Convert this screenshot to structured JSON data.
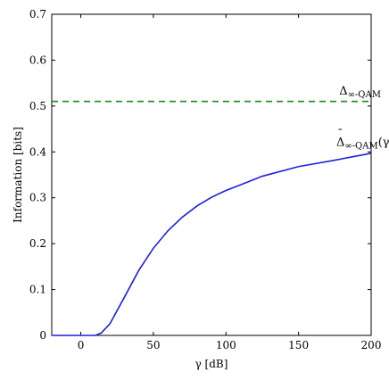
{
  "chart_data": {
    "type": "line",
    "xlabel": "γ [dB]",
    "ylabel": "Information [bits]",
    "xlim": [
      -20,
      200
    ],
    "ylim": [
      0,
      0.7
    ],
    "x_ticks": [
      0,
      50,
      100,
      150,
      200
    ],
    "y_ticks": [
      0,
      0.1,
      0.2,
      0.3,
      0.4,
      0.5,
      0.6,
      0.7
    ],
    "x_tick_labels": [
      "0",
      "50",
      "100",
      "150",
      "200"
    ],
    "y_tick_labels": [
      "0",
      "0.1",
      "0.2",
      "0.3",
      "0.4",
      "0.5",
      "0.6",
      "0.7"
    ],
    "grid": false,
    "series": [
      {
        "color": "#1f1fdb",
        "style": "solid",
        "x": [
          -20,
          0,
          10,
          14,
          20,
          30,
          40,
          50,
          60,
          70,
          80,
          90,
          100,
          110,
          125,
          150,
          175,
          200
        ],
        "y": [
          0,
          0,
          0,
          0.005,
          0.025,
          0.083,
          0.142,
          0.19,
          0.228,
          0.258,
          0.282,
          0.301,
          0.316,
          0.328,
          0.347,
          0.368,
          0.382,
          0.397
        ]
      },
      {
        "color": "#1a8a1a",
        "style": "dashed",
        "x": [
          -20,
          200
        ],
        "y": [
          0.51,
          0.51
        ]
      }
    ],
    "annotations": [
      {
        "main": "Δ",
        "sub": "∞-QAM",
        "suffix": "",
        "accent": "",
        "x": 178,
        "y": 0.525
      },
      {
        "main": "Δ",
        "sub": "∞-QAM",
        "suffix": "(γ)",
        "accent": "¯",
        "x": 176,
        "y": 0.413
      }
    ]
  }
}
